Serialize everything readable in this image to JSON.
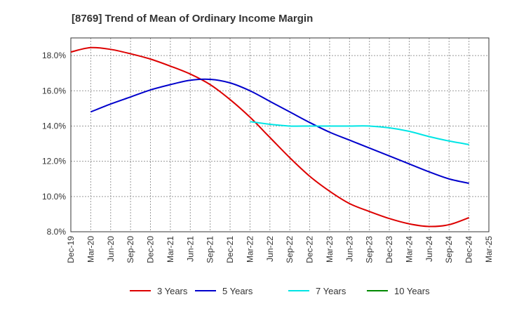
{
  "chart_data": {
    "type": "line",
    "title": "[8769]  Trend of Mean of Ordinary Income Margin",
    "xlabel": "",
    "ylabel": "",
    "x_tick_labels": [
      "Dec-19",
      "Mar-20",
      "Jun-20",
      "Sep-20",
      "Dec-20",
      "Mar-21",
      "Jun-21",
      "Sep-21",
      "Dec-21",
      "Mar-22",
      "Jun-22",
      "Sep-22",
      "Dec-22",
      "Mar-23",
      "Jun-23",
      "Sep-23",
      "Dec-23",
      "Mar-24",
      "Jun-24",
      "Sep-24",
      "Dec-24",
      "Mar-25"
    ],
    "y_tick_labels": [
      "8.0%",
      "10.0%",
      "12.0%",
      "14.0%",
      "16.0%",
      "18.0%"
    ],
    "ylim": [
      8.0,
      19.0
    ],
    "y_unit": "%",
    "grid": true,
    "legend_position": "bottom",
    "series": [
      {
        "name": "3 Years",
        "color": "#dd0000",
        "x": [
          "Dec-19",
          "Mar-20",
          "Jun-20",
          "Sep-20",
          "Dec-20",
          "Mar-21",
          "Jun-21",
          "Sep-21",
          "Dec-21",
          "Mar-22",
          "Jun-22",
          "Sep-22",
          "Dec-22",
          "Mar-23",
          "Jun-23",
          "Sep-23",
          "Dec-23",
          "Mar-24",
          "Jun-24",
          "Sep-24",
          "Dec-24"
        ],
        "values": [
          18.2,
          18.45,
          18.35,
          18.1,
          17.8,
          17.4,
          16.95,
          16.35,
          15.5,
          14.5,
          13.35,
          12.2,
          11.15,
          10.3,
          9.6,
          9.15,
          8.75,
          8.45,
          8.3,
          8.4,
          8.8
        ]
      },
      {
        "name": "5 Years",
        "color": "#0000cc",
        "x": [
          "Mar-20",
          "Jun-20",
          "Sep-20",
          "Dec-20",
          "Mar-21",
          "Jun-21",
          "Sep-21",
          "Dec-21",
          "Mar-22",
          "Jun-22",
          "Sep-22",
          "Dec-22",
          "Mar-23",
          "Jun-23",
          "Sep-23",
          "Dec-23",
          "Mar-24",
          "Jun-24",
          "Sep-24",
          "Dec-24"
        ],
        "values": [
          14.8,
          15.25,
          15.65,
          16.05,
          16.35,
          16.6,
          16.65,
          16.45,
          16.0,
          15.4,
          14.8,
          14.2,
          13.65,
          13.2,
          12.75,
          12.3,
          11.85,
          11.4,
          11.0,
          10.75
        ]
      },
      {
        "name": "7 Years",
        "color": "#00e5e5",
        "x": [
          "Mar-22",
          "Jun-22",
          "Sep-22",
          "Dec-22",
          "Mar-23",
          "Jun-23",
          "Sep-23",
          "Dec-23",
          "Mar-24",
          "Jun-24",
          "Sep-24",
          "Dec-24"
        ],
        "values": [
          14.25,
          14.1,
          14.0,
          14.0,
          14.0,
          14.0,
          14.0,
          13.9,
          13.7,
          13.4,
          13.15,
          12.95
        ]
      },
      {
        "name": "10 Years",
        "color": "#008800",
        "x": [],
        "values": []
      }
    ]
  }
}
